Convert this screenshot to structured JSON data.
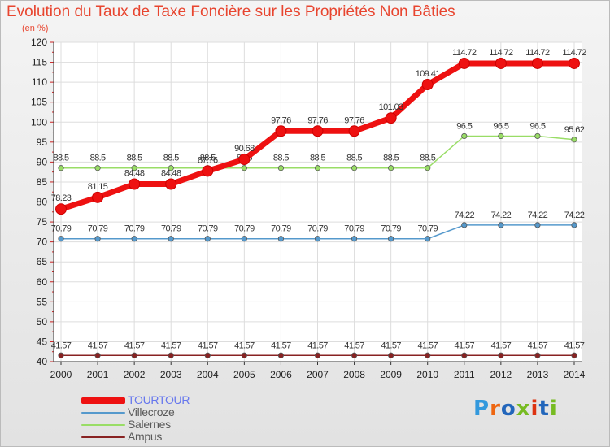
{
  "page": {
    "title": "Evolution du Taux de Taxe Foncière sur les Propriétés Non Bâties",
    "subtitle": "(en %)"
  },
  "chart_data": {
    "type": "line",
    "title": "Evolution du Taux de Taxe Foncière sur les Propriétés Non Bâties",
    "ylabel": "(en %)",
    "xlabel": "",
    "ylim": [
      40,
      120
    ],
    "yticks": [
      40,
      45,
      50,
      55,
      60,
      65,
      70,
      75,
      80,
      85,
      90,
      95,
      100,
      105,
      110,
      115,
      120
    ],
    "categories": [
      "2000",
      "2001",
      "2002",
      "2003",
      "2004",
      "2005",
      "2006",
      "2007",
      "2008",
      "2009",
      "2010",
      "2011",
      "2012",
      "2013",
      "2014"
    ],
    "grid": true,
    "legend_position": "bottom-left",
    "series": [
      {
        "name": "TOURTOUR",
        "color": "#ee1111",
        "values": [
          78.23,
          81.15,
          84.48,
          84.48,
          87.76,
          90.68,
          97.76,
          97.76,
          97.76,
          101.03,
          109.41,
          114.72,
          114.72,
          114.72,
          114.72
        ],
        "labels": [
          "78.23",
          "81.15",
          "84.48",
          "84.48",
          "87.76",
          "90.68",
          "97.76",
          "97.76",
          "97.76",
          "101.03",
          "109.41",
          "114.72",
          "114.72",
          "114.72",
          "114.72"
        ]
      },
      {
        "name": "Villecroze",
        "color": "#5599cc",
        "values": [
          70.79,
          70.79,
          70.79,
          70.79,
          70.79,
          70.79,
          70.79,
          70.79,
          70.79,
          70.79,
          70.79,
          74.22,
          74.22,
          74.22,
          74.22
        ],
        "labels": [
          "70.79",
          "70.79",
          "70.79",
          "70.79",
          "70.79",
          "70.79",
          "70.79",
          "70.79",
          "70.79",
          "70.79",
          "70.79",
          "74.22",
          "74.22",
          "74.22",
          "74.22"
        ]
      },
      {
        "name": "Salernes",
        "color": "#99dd66",
        "values": [
          88.5,
          88.5,
          88.5,
          88.5,
          88.5,
          88.5,
          88.5,
          88.5,
          88.5,
          88.5,
          88.5,
          96.5,
          96.5,
          96.5,
          95.62
        ],
        "labels": [
          "88.5",
          "88.5",
          "88.5",
          "88.5",
          "88.5",
          "88.5",
          "88.5",
          "88.5",
          "88.5",
          "88.5",
          "88.5",
          "96.5",
          "96.5",
          "96.5",
          "95.62"
        ]
      },
      {
        "name": "Ampus",
        "color": "#882222",
        "values": [
          41.57,
          41.57,
          41.57,
          41.57,
          41.57,
          41.57,
          41.57,
          41.57,
          41.57,
          41.57,
          41.57,
          41.57,
          41.57,
          41.57,
          41.57
        ],
        "labels": [
          "41.57",
          "41.57",
          "41.57",
          "41.57",
          "41.57",
          "41.57",
          "41.57",
          "41.57",
          "41.57",
          "41.57",
          "41.57",
          "41.57",
          "41.57",
          "41.57",
          "41.57"
        ]
      }
    ]
  },
  "legend": {
    "items": [
      {
        "label": "TOURTOUR",
        "color": "#ee1111"
      },
      {
        "label": "Villecroze",
        "color": "#5599cc"
      },
      {
        "label": "Salernes",
        "color": "#99dd66"
      },
      {
        "label": "Ampus",
        "color": "#882222"
      }
    ]
  },
  "logo": {
    "text": "Proxiti",
    "colors": [
      "#3399dd",
      "#ee6611",
      "#2266bb",
      "#77bb22",
      "#dd3311",
      "#2266bb",
      "#77bb22"
    ]
  }
}
